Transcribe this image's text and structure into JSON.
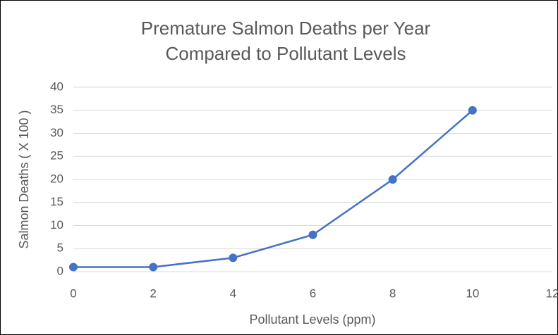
{
  "chart_data": {
    "type": "line",
    "title": [
      "Premature Salmon Deaths per Year",
      "Compared to Pollutant Levels"
    ],
    "x_label": "Pollutant Levels (ppm)",
    "y_label": "Salmon Deaths ( X 100 )",
    "x": [
      0,
      2,
      4,
      6,
      8,
      10
    ],
    "series": [
      {
        "name": "Salmon Deaths",
        "color": "#4472c4",
        "values": [
          1,
          1,
          3,
          8,
          20,
          35
        ]
      }
    ],
    "xlim": [
      0,
      12
    ],
    "xticks": [
      0,
      2,
      4,
      6,
      8,
      10,
      12
    ],
    "ylim": [
      0,
      40
    ],
    "yticks": [
      0,
      5,
      10,
      15,
      20,
      25,
      30,
      35,
      40
    ],
    "grid": true,
    "markers": true
  }
}
